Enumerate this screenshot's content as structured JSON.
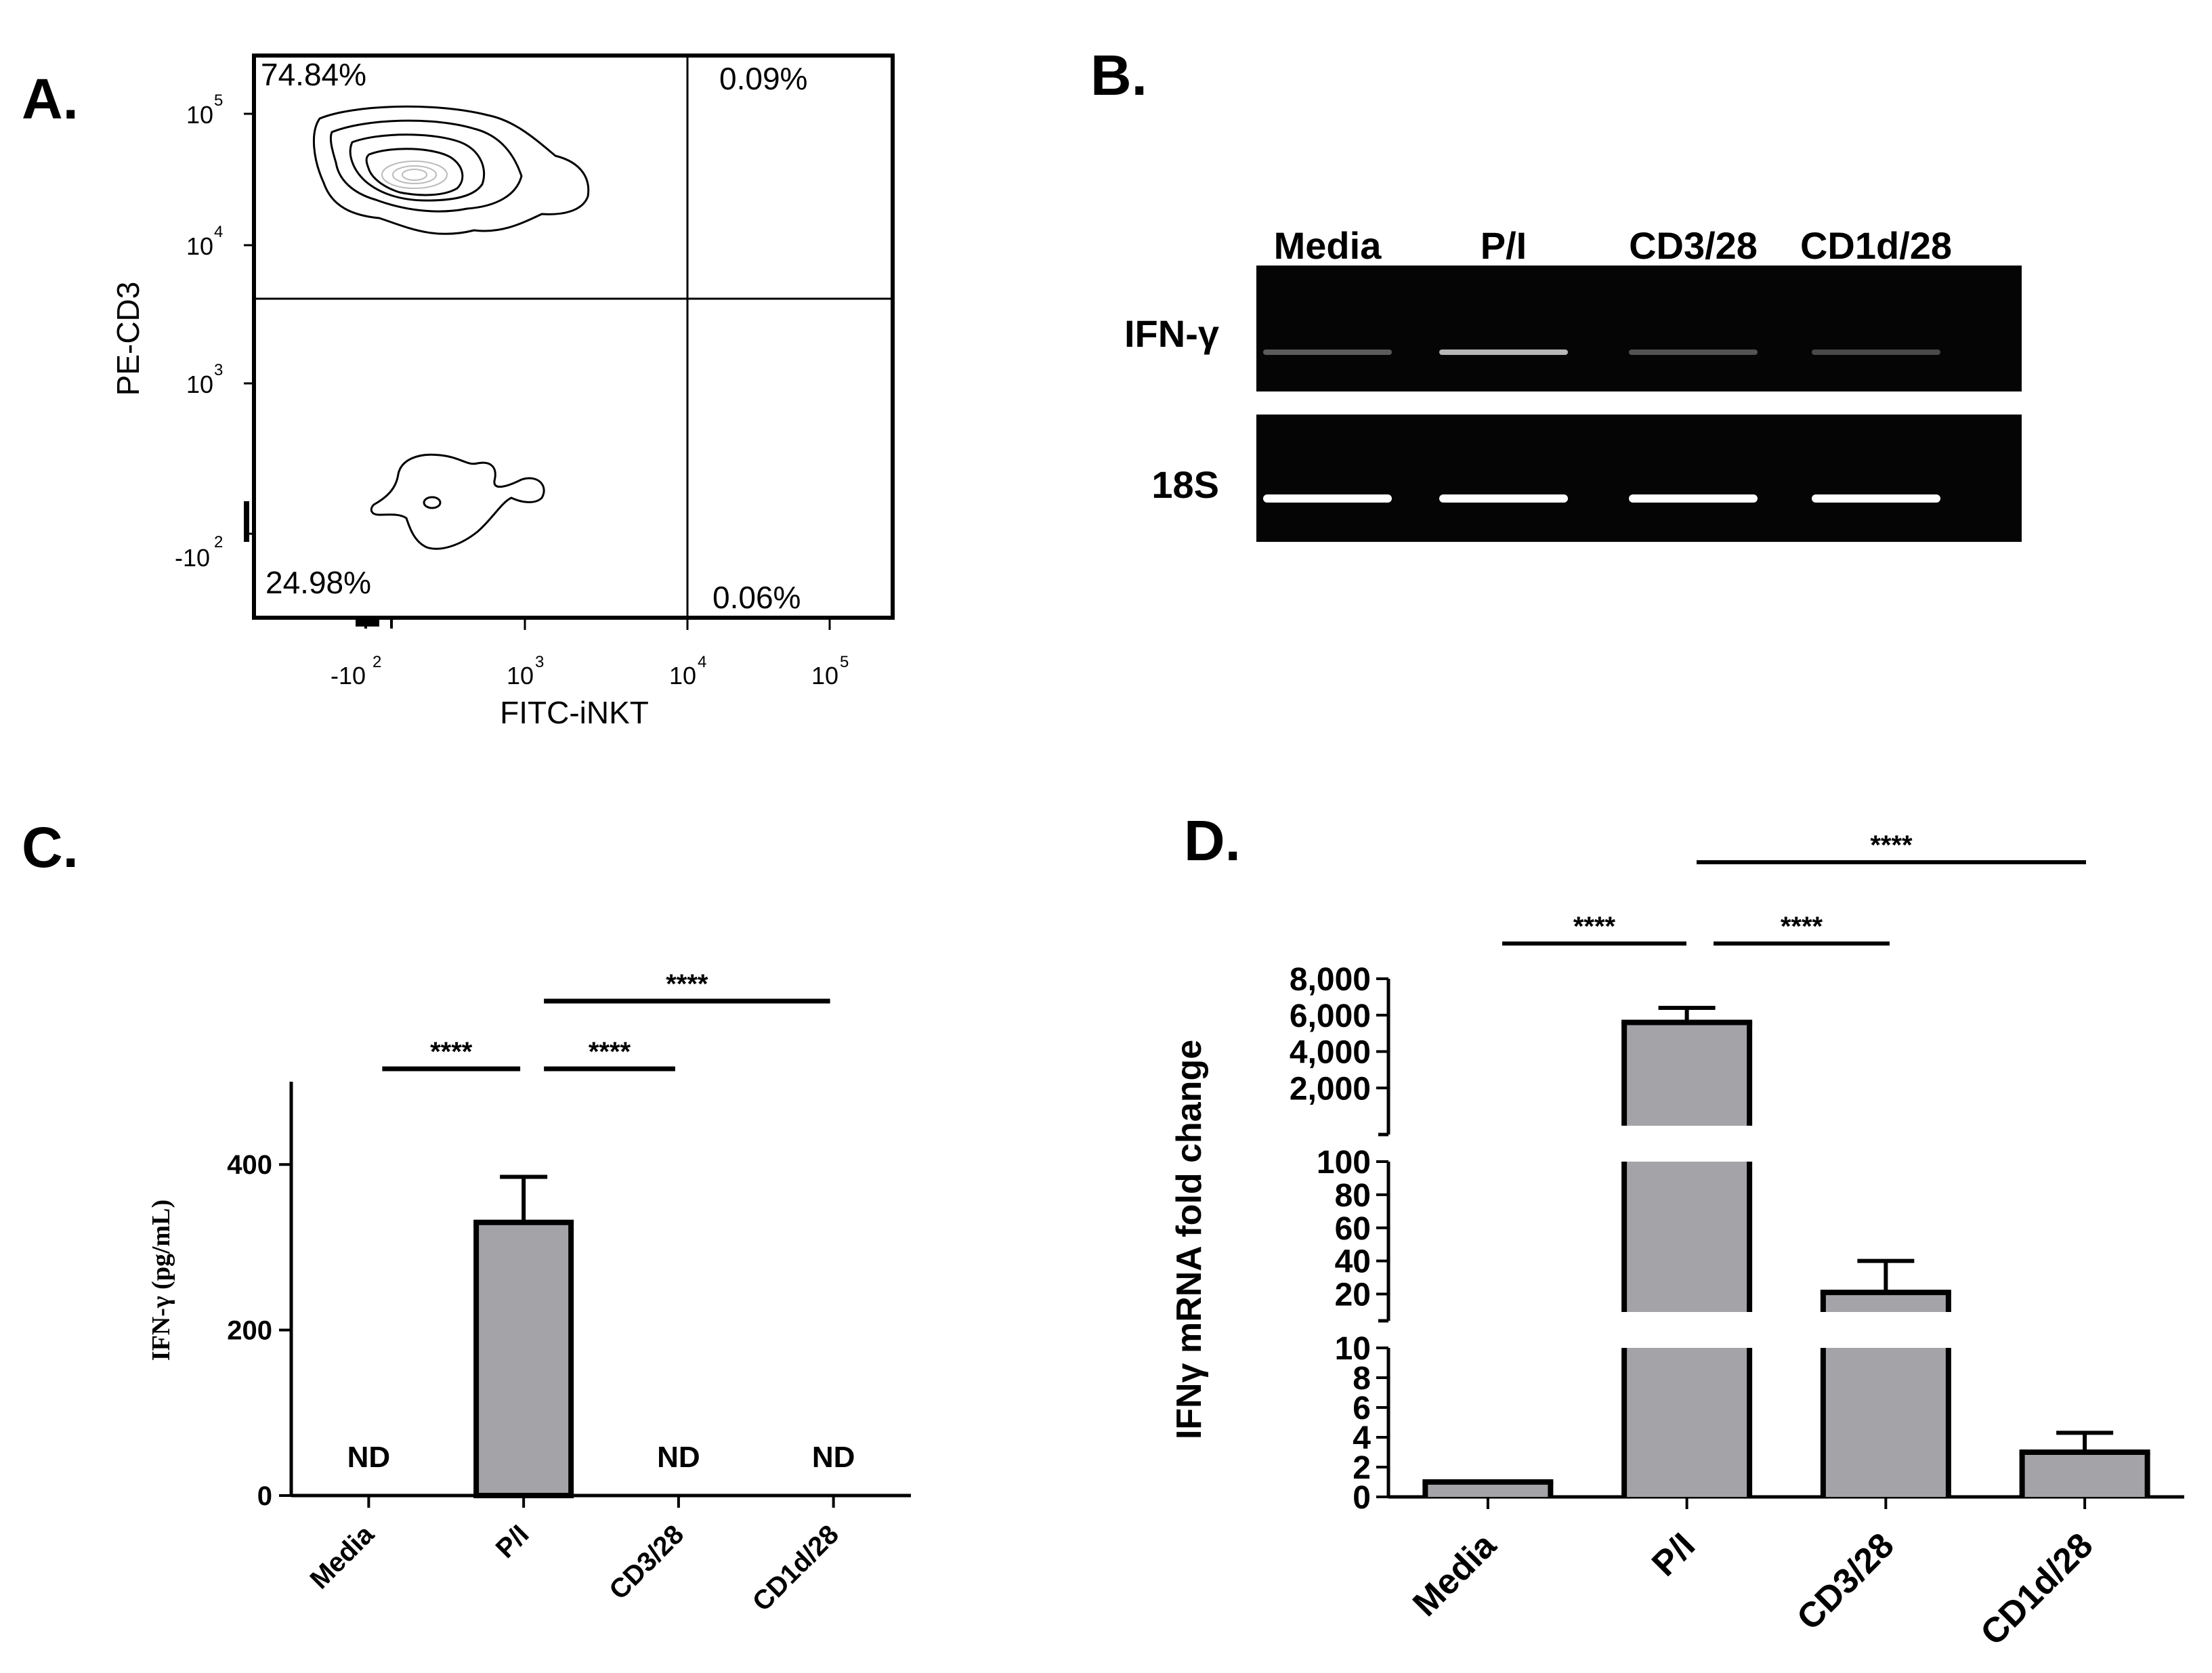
{
  "panels": {
    "a_label": "A.",
    "b_label": "B.",
    "c_label": "C.",
    "d_label": "D."
  },
  "chart_data": [
    {
      "panel": "A",
      "type": "scatter",
      "subtype": "flow-cytometry-contour",
      "xlabel": "FITC-iNKT",
      "ylabel": "PE-CD3",
      "x_ticks": [
        {
          "base": "-10",
          "exp": "2"
        },
        {
          "base": "10",
          "exp": "3"
        },
        {
          "base": "10",
          "exp": "4"
        },
        {
          "base": "10",
          "exp": "5"
        }
      ],
      "y_ticks": [
        {
          "base": "10",
          "exp": "5"
        },
        {
          "base": "10",
          "exp": "4"
        },
        {
          "base": "10",
          "exp": "3"
        },
        {
          "base": "-10",
          "exp": "2"
        }
      ],
      "quadrants": {
        "upper_left": "74.84%",
        "upper_right": "0.09%",
        "lower_left": "24.98%",
        "lower_right": "0.06%"
      }
    },
    {
      "panel": "B",
      "type": "table",
      "subtype": "gel",
      "lanes": [
        "Media",
        "P/I",
        "CD3/28",
        "CD1d/28"
      ],
      "rows": [
        {
          "name": "IFN-γ",
          "band_intensity": [
            0.35,
            0.75,
            0.3,
            0.25
          ]
        },
        {
          "name": "18S",
          "band_intensity": [
            1,
            1,
            1,
            1
          ]
        }
      ]
    },
    {
      "panel": "C",
      "type": "bar",
      "categories": [
        "Media",
        "P/I",
        "CD3/28",
        "CD1d/28"
      ],
      "values": [
        null,
        330,
        null,
        null
      ],
      "errors": [
        null,
        55,
        null,
        null
      ],
      "value_labels": [
        "ND",
        "",
        "ND",
        "ND"
      ],
      "ylabel": "IFN-γ (pg/mL)",
      "ylim": [
        0,
        500
      ],
      "yticks": [
        "0",
        "200",
        "400"
      ],
      "bar_color": "#a3a3a8",
      "significance": [
        {
          "from": 0,
          "to": 1,
          "label": "****",
          "level": 0
        },
        {
          "from": 1,
          "to": 2,
          "label": "****",
          "level": 0
        },
        {
          "from": 1,
          "to": 3,
          "label": "****",
          "level": 1
        }
      ]
    },
    {
      "panel": "D",
      "type": "bar",
      "scale": "broken-axis",
      "categories": [
        "Media",
        "P/I",
        "CD3/28",
        "CD1d/28"
      ],
      "values": [
        1,
        5600,
        21,
        3
      ],
      "errors": [
        0,
        800,
        19,
        1.3
      ],
      "ylabel": "IFNγ mRNA fold change",
      "bar_color": "#a3a3a8",
      "segments": [
        {
          "range": [
            0,
            10
          ],
          "ticks": [
            "0",
            "2",
            "4",
            "6",
            "8",
            "10"
          ]
        },
        {
          "range": [
            10,
            100
          ],
          "ticks": [
            "20",
            "40",
            "60",
            "80",
            "100"
          ]
        },
        {
          "range": [
            0,
            8000
          ],
          "ticks": [
            "2,000",
            "4,000",
            "6,000",
            "8,000"
          ]
        }
      ],
      "significance": [
        {
          "from": 0,
          "to": 1,
          "label": "****",
          "level": 0
        },
        {
          "from": 1,
          "to": 2,
          "label": "****",
          "level": 0
        },
        {
          "from": 1,
          "to": 3,
          "label": "****",
          "level": 1
        }
      ]
    }
  ]
}
